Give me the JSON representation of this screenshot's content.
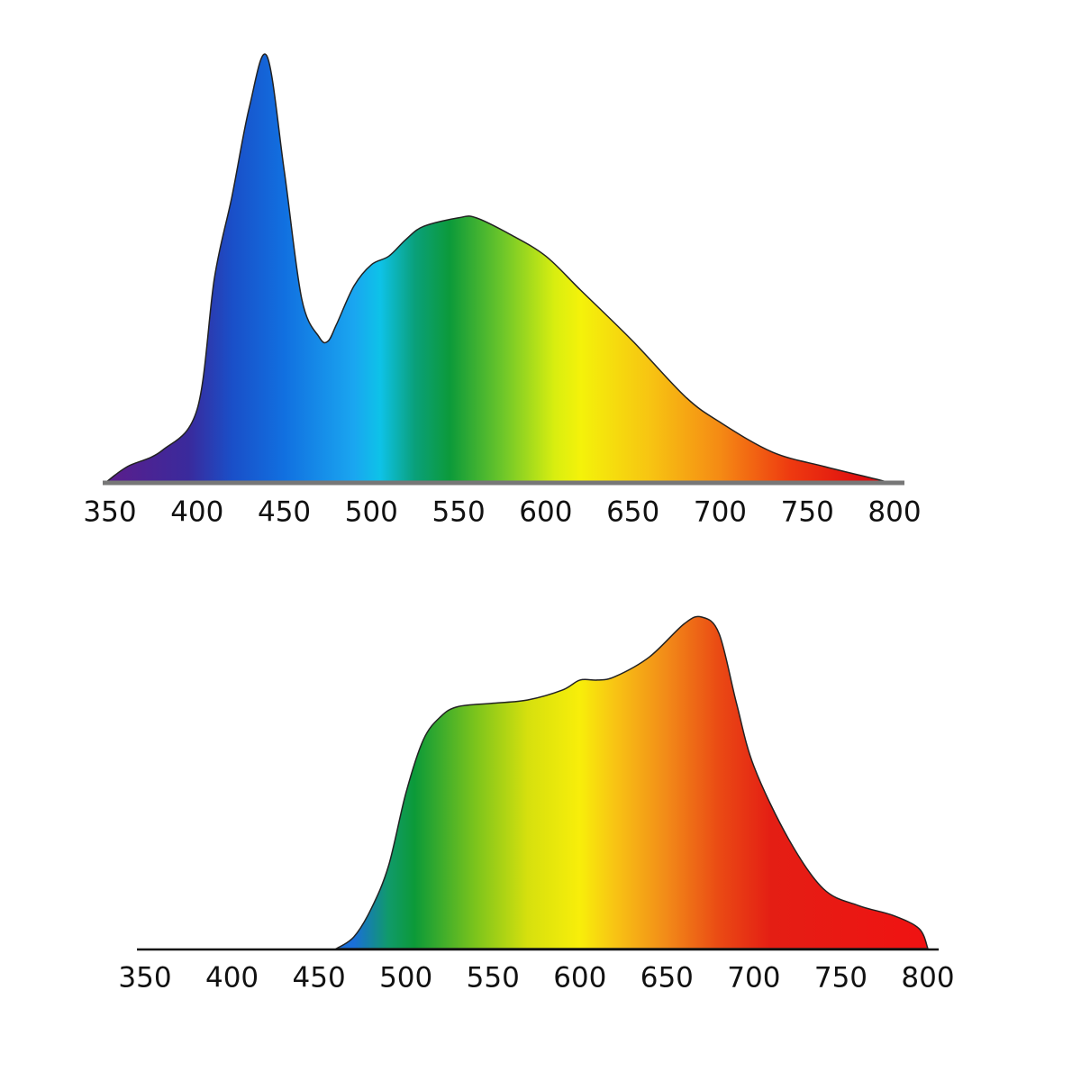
{
  "chart_data": [
    {
      "type": "area",
      "x": [
        348,
        360,
        380,
        400,
        410,
        420,
        430,
        440,
        450,
        460,
        470,
        475,
        480,
        490,
        500,
        510,
        520,
        530,
        550,
        560,
        580,
        600,
        620,
        650,
        680,
        700,
        730,
        760,
        790,
        795
      ],
      "values": [
        0,
        3.6,
        7.4,
        17,
        48,
        67,
        88,
        100,
        73,
        43,
        34,
        33,
        37,
        46,
        51,
        53,
        57,
        60,
        62,
        62,
        58,
        53,
        45,
        33,
        20,
        14,
        7,
        3.6,
        0.6,
        0
      ],
      "xlim": [
        350,
        800
      ],
      "xticks": [
        350,
        400,
        450,
        500,
        550,
        600,
        650,
        700,
        750,
        800
      ]
    },
    {
      "type": "area",
      "x": [
        460,
        470,
        480,
        490,
        500,
        510,
        520,
        530,
        550,
        570,
        590,
        600,
        610,
        620,
        640,
        660,
        670,
        680,
        690,
        700,
        720,
        740,
        760,
        780,
        795,
        800
      ],
      "values": [
        0,
        3.5,
        12,
        25,
        47,
        63,
        70,
        73,
        74,
        75,
        78,
        81,
        81,
        82,
        88,
        98,
        100,
        95,
        74,
        55,
        33,
        18,
        13,
        10,
        6,
        0
      ],
      "xlim": [
        350,
        800
      ],
      "xticks": [
        350,
        400,
        450,
        500,
        550,
        600,
        650,
        700,
        750,
        800
      ]
    }
  ]
}
